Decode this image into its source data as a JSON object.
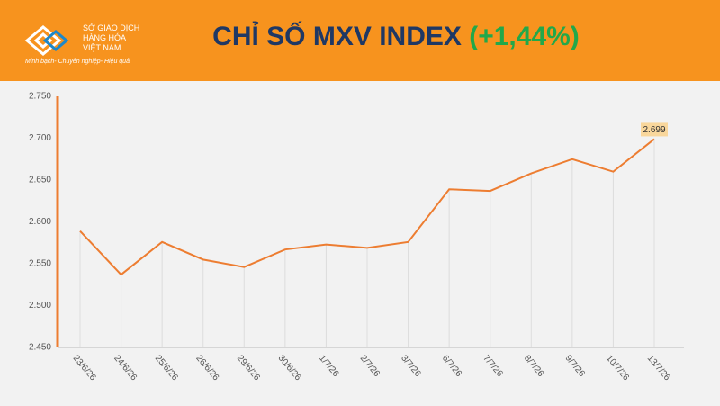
{
  "header": {
    "logo": [
      "SỞ GIAO DỊCH",
      "HÀNG HÓA",
      "VIỆT NAM"
    ],
    "tagline": "Minh bạch- Chuyên nghiệp- Hiệu quả"
  },
  "chart_data": {
    "type": "line",
    "title": "CHỈ SỐ MXV INDEX",
    "change": "(+1,44%)",
    "categories": [
      "23/6/26",
      "24/6/26",
      "25/6/26",
      "26/6/26",
      "29/6/26",
      "30/6/26",
      "1/7/26",
      "2/7/26",
      "3/7/26",
      "6/7/26",
      "7/7/26",
      "8/7/26",
      "9/7/26",
      "10/7/26",
      "13/7/26"
    ],
    "series": [
      {
        "color": "#ed7d31",
        "values": [
          2589,
          2537,
          2576,
          2555,
          2546,
          2567,
          2573,
          2569,
          2576,
          2639,
          2637,
          2658,
          2675,
          2660,
          2699
        ],
        "value_labels": [
          null,
          null,
          null,
          null,
          null,
          null,
          null,
          null,
          null,
          null,
          null,
          null,
          null,
          null,
          "2.699"
        ]
      }
    ],
    "ylim": [
      2450,
      2750
    ],
    "yticks": [
      {
        "value": 2450,
        "label": "2.450"
      },
      {
        "value": 2500,
        "label": "2.500"
      },
      {
        "value": 2550,
        "label": "2.550"
      },
      {
        "value": 2600,
        "label": "2.600"
      },
      {
        "value": 2650,
        "label": "2.650"
      },
      {
        "value": 2700,
        "label": "2.700"
      },
      {
        "value": 2750,
        "label": "2.750"
      }
    ]
  }
}
